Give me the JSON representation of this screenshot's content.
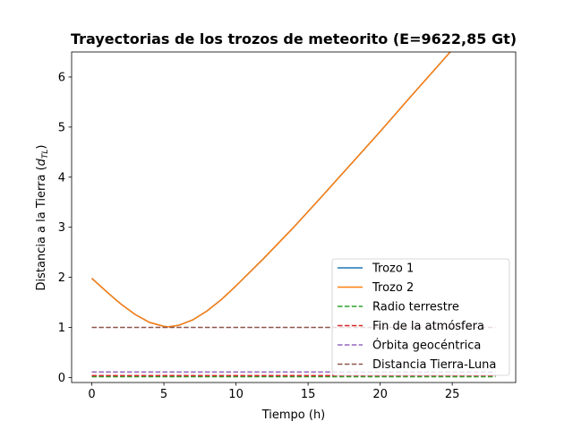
{
  "chart_data": {
    "type": "line",
    "title": "Trayectorias de los trozos de meteorito (E=9622,85 Gt)",
    "xlabel": "Tiempo (h)",
    "ylabel": "Distancia a la Tierra (",
    "ylabel_math": "d",
    "ylabel_sub": "TL",
    "ylabel_end": ")",
    "xlim": [
      -1.4,
      29.4
    ],
    "ylim": [
      -0.1,
      6.5
    ],
    "x_ticks": [
      0,
      5,
      10,
      15,
      20,
      25
    ],
    "x_tick_labels": [
      "0",
      "5",
      "10",
      "15",
      "20",
      "25"
    ],
    "y_ticks": [
      0,
      1,
      2,
      3,
      4,
      5,
      6
    ],
    "y_tick_labels": [
      "0",
      "1",
      "2",
      "3",
      "4",
      "5",
      "6"
    ],
    "grid": false,
    "legend_placement": "lower-right",
    "series": [
      {
        "name": "Trozo 1",
        "color": "#1f77b4",
        "dash": "solid",
        "x": [
          0,
          1,
          2,
          3,
          4,
          5,
          5.3,
          6,
          7,
          8,
          9,
          10,
          12,
          14,
          16,
          18,
          20,
          22,
          24,
          25.1
        ],
        "y": [
          1.98,
          1.72,
          1.47,
          1.26,
          1.1,
          1.02,
          1.01,
          1.04,
          1.15,
          1.33,
          1.56,
          1.83,
          2.4,
          3.0,
          3.63,
          4.27,
          4.91,
          5.57,
          6.22,
          6.58
        ]
      },
      {
        "name": "Trozo 2",
        "color": "#ff7f0e",
        "dash": "solid",
        "x": [
          0,
          1,
          2,
          3,
          4,
          5,
          5.3,
          6,
          7,
          8,
          9,
          10,
          12,
          14,
          16,
          18,
          20,
          22,
          24,
          25.1
        ],
        "y": [
          1.98,
          1.72,
          1.47,
          1.26,
          1.1,
          1.02,
          1.01,
          1.04,
          1.15,
          1.33,
          1.56,
          1.83,
          2.4,
          3.0,
          3.63,
          4.27,
          4.91,
          5.57,
          6.22,
          6.58
        ]
      },
      {
        "name": "Radio terrestre",
        "color": "#2ca02c",
        "dash": "dashed",
        "x": [
          0,
          28
        ],
        "y": [
          0.017,
          0.017
        ]
      },
      {
        "name": "Fin de la atmósfera",
        "color": "#d62728",
        "dash": "dashed",
        "x": [
          0,
          28
        ],
        "y": [
          0.04,
          0.04
        ]
      },
      {
        "name": "Órbita geocéntrica",
        "color": "#9467bd",
        "dash": "dashed",
        "x": [
          0,
          28
        ],
        "y": [
          0.11,
          0.11
        ]
      },
      {
        "name": "Distancia Tierra-Luna",
        "color": "#8c564b",
        "dash": "dashed",
        "x": [
          0,
          28
        ],
        "y": [
          1.0,
          1.0
        ]
      }
    ]
  }
}
